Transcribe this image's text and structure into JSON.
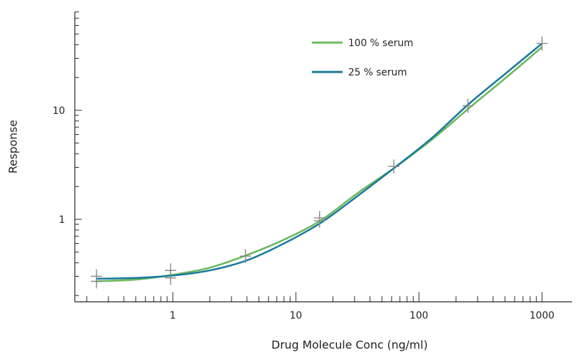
{
  "chart_data": {
    "type": "line",
    "title": "",
    "xlabel": "Drug Molecule Conc (ng/ml)",
    "ylabel": "Response",
    "x_scale": "log",
    "y_scale": "log",
    "xlim": [
      0.16,
      1750
    ],
    "ylim": [
      0.175,
      80
    ],
    "grid": false,
    "legend_position": "top-right",
    "x_ticks": [
      {
        "value": 1,
        "label": "1"
      },
      {
        "value": 10,
        "label": "10"
      },
      {
        "value": 100,
        "label": "100"
      },
      {
        "value": 1000,
        "label": "1000"
      }
    ],
    "y_ticks": [
      {
        "value": 1,
        "label": "1"
      },
      {
        "value": 10,
        "label": "10"
      }
    ],
    "series": [
      {
        "name": "100 % serum",
        "color": "#6cb85e",
        "x": [
          0.24,
          0.5,
          1,
          2,
          4,
          8,
          16,
          32,
          64,
          128,
          256,
          512,
          1000
        ],
        "y": [
          0.27,
          0.28,
          0.31,
          0.36,
          0.47,
          0.65,
          0.98,
          1.75,
          3.0,
          5.4,
          10.5,
          20,
          38
        ]
      },
      {
        "name": "25 % serum",
        "color": "#1a7a9c",
        "x": [
          0.24,
          0.5,
          1,
          2,
          4,
          8,
          16,
          32,
          64,
          128,
          256,
          512,
          1000
        ],
        "y": [
          0.285,
          0.29,
          0.305,
          0.34,
          0.42,
          0.6,
          0.93,
          1.65,
          3.0,
          5.6,
          11.5,
          22,
          41
        ]
      }
    ],
    "markers": {
      "x": [
        0.24,
        0.24,
        0.96,
        0.96,
        3.9,
        15.6,
        15.6,
        62.5,
        250,
        1000
      ],
      "y": [
        0.27,
        0.3,
        0.29,
        0.34,
        0.46,
        0.97,
        1.03,
        3.05,
        11,
        41
      ]
    }
  }
}
